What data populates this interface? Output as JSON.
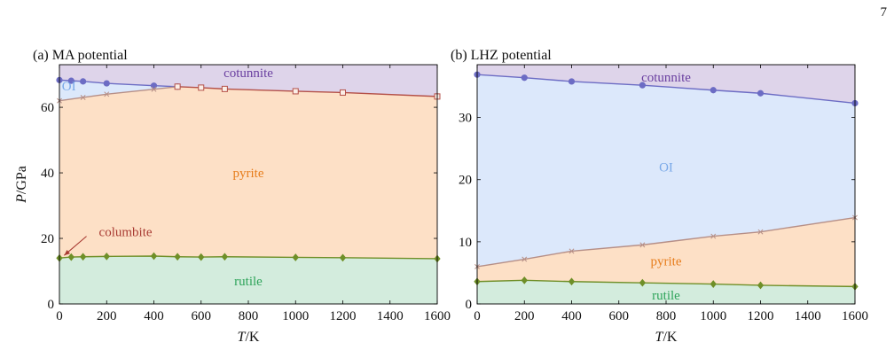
{
  "page_number": "7",
  "colors": {
    "cotunnite_region": "#ded4ea",
    "oi_region": "#dce8fb",
    "pyrite_region": "#fde0c6",
    "rutile_region": "#d3ecdd",
    "cotunnite_line": "#6c6cc4",
    "ms_line": "#b68f87",
    "pyrite_line": "#b45048",
    "rutile_line": "#6f8f28",
    "cotunnite_text": "#6a3fa0",
    "oi_text": "#7aa9e8",
    "pyrite_text": "#e77d1c",
    "rutile_text": "#2ea45a",
    "columbite_text": "#a83a32"
  },
  "chart_data": [
    {
      "type": "area",
      "title": "(a) MA potential",
      "xlabel": "T/K",
      "ylabel": "P/GPa",
      "xlim": [
        0,
        1600
      ],
      "ylim": [
        0,
        73
      ],
      "xticks": [
        "0",
        "200",
        "400",
        "600",
        "800",
        "1000",
        "1200",
        "1400",
        "1600"
      ],
      "yticks": [
        "0",
        "20",
        "40",
        "60"
      ],
      "region_labels": [
        {
          "text": "cotunnite",
          "x": 800,
          "y": 70.5
        },
        {
          "text": "OI",
          "x": 40,
          "y": 66.5
        },
        {
          "text": "pyrite",
          "x": 800,
          "y": 40
        },
        {
          "text": "rutile",
          "x": 800,
          "y": 7
        },
        {
          "text": "columbite",
          "x": 280,
          "y": 22,
          "arrow_to": {
            "x": 5,
            "y": 14
          }
        }
      ],
      "series": [
        {
          "role": "cotunnite_boundary",
          "marker": "circle",
          "x": [
            0,
            50,
            100,
            200,
            400,
            500
          ],
          "y": [
            68.3,
            68.1,
            67.9,
            67.3,
            66.6,
            66.3
          ]
        },
        {
          "role": "oi_pyrite_boundary",
          "marker": "x",
          "x": [
            0,
            100,
            200,
            400,
            500
          ],
          "y": [
            62.0,
            63.0,
            64.0,
            65.5,
            66.3
          ]
        },
        {
          "role": "pyrite_cotunnite_boundary",
          "marker": "square",
          "x": [
            500,
            600,
            700,
            1000,
            1200,
            1600
          ],
          "y": [
            66.3,
            66.0,
            65.6,
            64.9,
            64.5,
            63.3
          ]
        },
        {
          "role": "rutile_boundary",
          "marker": "diamond",
          "x": [
            0,
            50,
            100,
            200,
            400,
            500,
            600,
            700,
            1000,
            1200,
            1600
          ],
          "y": [
            14.0,
            14.3,
            14.4,
            14.5,
            14.6,
            14.4,
            14.3,
            14.4,
            14.2,
            14.1,
            13.8
          ]
        }
      ]
    },
    {
      "type": "area",
      "title": "(b) LHZ potential",
      "xlabel": "T/K",
      "ylabel": "",
      "xlim": [
        0,
        1600
      ],
      "ylim": [
        0,
        38.5
      ],
      "xticks": [
        "0",
        "200",
        "400",
        "600",
        "800",
        "1000",
        "1200",
        "1400",
        "1600"
      ],
      "yticks": [
        "0",
        "10",
        "20",
        "30"
      ],
      "region_labels": [
        {
          "text": "cotunnite",
          "x": 800,
          "y": 36.5
        },
        {
          "text": "OI",
          "x": 800,
          "y": 22
        },
        {
          "text": "pyrite",
          "x": 800,
          "y": 6.9
        },
        {
          "text": "rutile",
          "x": 800,
          "y": 1.4
        }
      ],
      "series": [
        {
          "role": "cotunnite_boundary",
          "marker": "circle",
          "x": [
            0,
            200,
            400,
            700,
            1000,
            1200,
            1600
          ],
          "y": [
            36.9,
            36.4,
            35.8,
            35.2,
            34.4,
            33.9,
            32.3
          ]
        },
        {
          "role": "oi_pyrite_boundary",
          "marker": "x",
          "x": [
            0,
            200,
            400,
            700,
            1000,
            1200,
            1600
          ],
          "y": [
            6.0,
            7.2,
            8.5,
            9.5,
            10.9,
            11.6,
            13.9
          ]
        },
        {
          "role": "rutile_boundary",
          "marker": "diamond",
          "x": [
            0,
            200,
            400,
            700,
            1000,
            1200,
            1600
          ],
          "y": [
            3.6,
            3.8,
            3.6,
            3.4,
            3.2,
            3.0,
            2.8
          ]
        }
      ]
    }
  ]
}
